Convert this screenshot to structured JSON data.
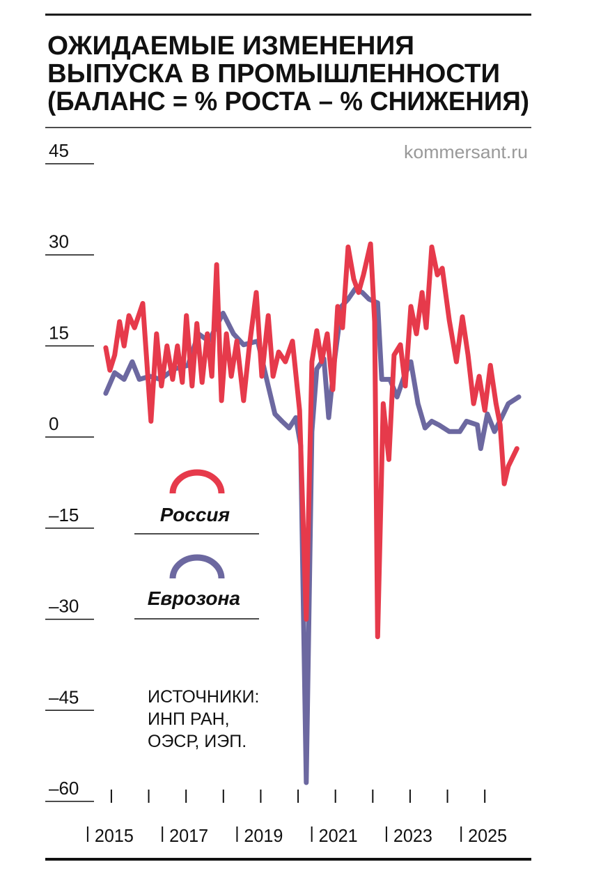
{
  "chart_data": {
    "type": "line",
    "title": [
      "ОЖИДАЕМЫЕ ИЗМЕНЕНИЯ",
      "ВЫПУСКА В ПРОМЫШЛЕННОСТИ",
      "(БАЛАНС = % РОСТА – % СНИЖЕНИЯ)"
    ],
    "source_site": "kommersant.ru",
    "sources_note": [
      "ИСТОЧНИКИ:",
      "ИНП РАН,",
      "ОЭСР, ИЭП."
    ],
    "xlim": [
      2013.23,
      2026.19
    ],
    "xticks": [
      2015,
      2017,
      2019,
      2021,
      2023,
      2025
    ],
    "xminorticks": [
      2016,
      2018,
      2020,
      2022,
      2024
    ],
    "ylim": [
      -60,
      45
    ],
    "yticks": [
      45,
      30,
      15,
      0,
      {
        "value": -15,
        "label": "–15"
      },
      {
        "value": -30,
        "label": "–30"
      },
      {
        "value": -45,
        "label": "–45"
      },
      {
        "value": -60,
        "label": "–60"
      }
    ],
    "series": [
      {
        "name": "Россия",
        "color": "#e63a4b",
        "x": [
          2014.85,
          2014.96,
          2015.09,
          2015.22,
          2015.34,
          2015.47,
          2015.62,
          2015.84,
          2016.06,
          2016.21,
          2016.34,
          2016.49,
          2016.64,
          2016.77,
          2016.9,
          2017.01,
          2017.16,
          2017.29,
          2017.43,
          2017.57,
          2017.69,
          2017.82,
          2017.95,
          2018.08,
          2018.21,
          2018.36,
          2018.54,
          2018.69,
          2018.88,
          2019.03,
          2019.2,
          2019.33,
          2019.48,
          2019.66,
          2019.85,
          2020.04,
          2020.22,
          2020.37,
          2020.5,
          2020.63,
          2020.78,
          2020.93,
          2021.06,
          2021.19,
          2021.34,
          2021.49,
          2021.62,
          2021.75,
          2021.94,
          2022.05,
          2022.13,
          2022.28,
          2022.43,
          2022.57,
          2022.74,
          2022.87,
          2023.02,
          2023.17,
          2023.32,
          2023.43,
          2023.58,
          2023.73,
          2023.86,
          2024.05,
          2024.24,
          2024.4,
          2024.55,
          2024.7,
          2024.85,
          2025.0,
          2025.15,
          2025.3,
          2025.41,
          2025.52,
          2025.63,
          2025.86
        ],
        "values": [
          14.7,
          11,
          13.5,
          19,
          15,
          20,
          18,
          22,
          2.6,
          17,
          8.4,
          15,
          9.5,
          15,
          9,
          20,
          8.4,
          18.7,
          9,
          17,
          10,
          28.4,
          6,
          17,
          10,
          15.8,
          6,
          14.7,
          23.8,
          10,
          20,
          10,
          14,
          12.4,
          15.8,
          4.4,
          -30,
          12.4,
          17.5,
          12.4,
          17,
          7.8,
          21.5,
          18,
          31.3,
          26,
          23.8,
          26.7,
          31.8,
          19,
          -32.9,
          5.5,
          -3.7,
          13.5,
          15.2,
          8.4,
          21.5,
          17,
          23.8,
          18,
          31.3,
          26.7,
          27.8,
          19.2,
          12.4,
          19.8,
          13.5,
          5.5,
          10,
          4.4,
          11.8,
          5.5,
          2,
          -7.7,
          -4.8,
          -1.9
        ]
      },
      {
        "name": "Еврозона",
        "color": "#6c68a0",
        "x": [
          2014.85,
          2015.09,
          2015.34,
          2015.56,
          2015.75,
          2016.03,
          2016.31,
          2016.68,
          2017.05,
          2017.33,
          2017.61,
          2017.99,
          2018.27,
          2018.54,
          2018.92,
          2019.2,
          2019.38,
          2019.57,
          2019.76,
          2019.94,
          2020.07,
          2020.22,
          2020.37,
          2020.5,
          2020.69,
          2020.82,
          2020.97,
          2021.16,
          2021.34,
          2021.53,
          2021.72,
          2021.9,
          2022.13,
          2022.24,
          2022.46,
          2022.65,
          2022.84,
          2023.02,
          2023.21,
          2023.4,
          2023.58,
          2023.77,
          2024.05,
          2024.33,
          2024.51,
          2024.8,
          2024.89,
          2025.07,
          2025.26,
          2025.45,
          2025.63,
          2025.91
        ],
        "values": [
          7.2,
          10.6,
          9.5,
          12.4,
          9.5,
          10,
          9.5,
          11.2,
          11.8,
          17,
          15.8,
          20.4,
          17,
          15.2,
          15.8,
          8.4,
          3.8,
          2.6,
          1.5,
          3.2,
          -1.4,
          -56.9,
          0.9,
          11.2,
          12.9,
          3.2,
          12.4,
          21.5,
          22.7,
          24.4,
          23.8,
          22.7,
          22.1,
          9.5,
          9.5,
          6.6,
          10,
          12.4,
          5.5,
          1.5,
          2.6,
          2,
          0.9,
          0.9,
          2.6,
          2,
          -1.9,
          3.8,
          0.9,
          3.2,
          5.5,
          6.6
        ]
      }
    ]
  }
}
